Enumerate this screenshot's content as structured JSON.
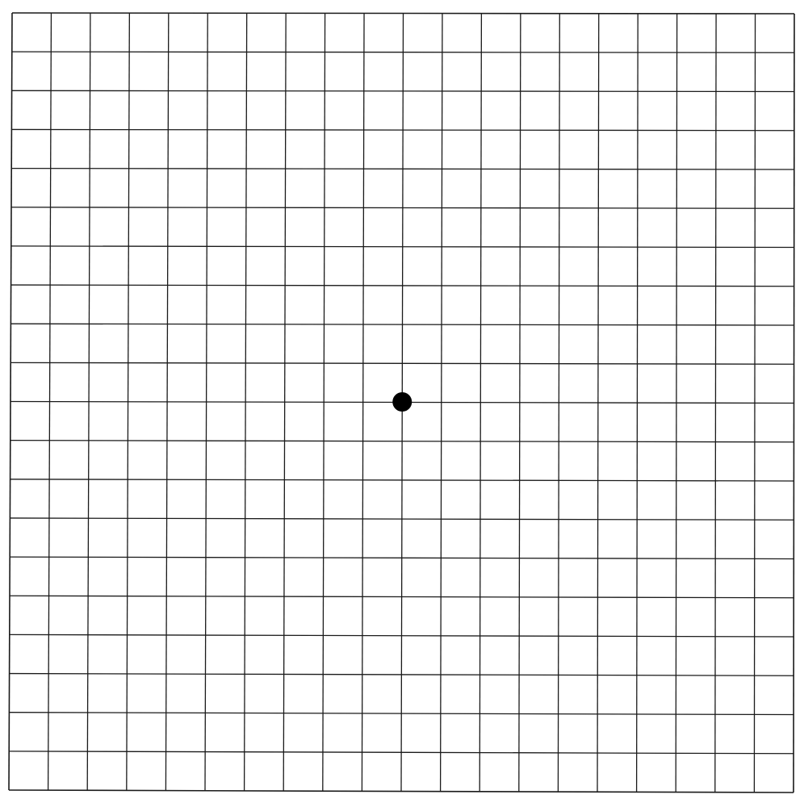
{
  "grid": {
    "name": "Amsler grid",
    "columns": 20,
    "rows": 20,
    "line_color": "#1a1a1a",
    "background_color": "#ffffff",
    "fixation_dot_color": "#000000"
  }
}
